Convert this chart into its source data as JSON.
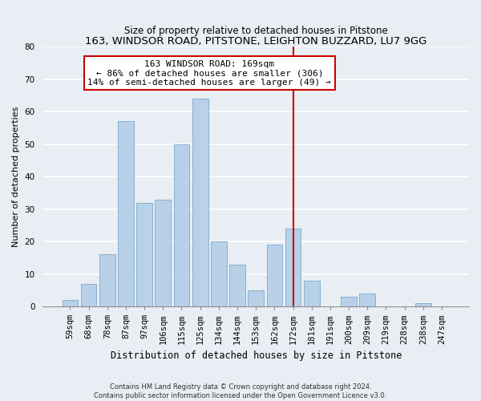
{
  "title": "163, WINDSOR ROAD, PITSTONE, LEIGHTON BUZZARD, LU7 9GG",
  "subtitle": "Size of property relative to detached houses in Pitstone",
  "xlabel": "Distribution of detached houses by size in Pitstone",
  "ylabel": "Number of detached properties",
  "bar_labels": [
    "59sqm",
    "68sqm",
    "78sqm",
    "87sqm",
    "97sqm",
    "106sqm",
    "115sqm",
    "125sqm",
    "134sqm",
    "144sqm",
    "153sqm",
    "162sqm",
    "172sqm",
    "181sqm",
    "191sqm",
    "200sqm",
    "209sqm",
    "219sqm",
    "228sqm",
    "238sqm",
    "247sqm"
  ],
  "bar_values": [
    2,
    7,
    16,
    57,
    32,
    33,
    50,
    64,
    20,
    13,
    5,
    19,
    24,
    8,
    0,
    3,
    4,
    0,
    0,
    1,
    0
  ],
  "bar_color": "#b8d0e8",
  "bar_edge_color": "#7aaac8",
  "vline_x_index": 12,
  "vline_color": "#cc0000",
  "annotation_title": "163 WINDSOR ROAD: 169sqm",
  "annotation_line1": "← 86% of detached houses are smaller (306)",
  "annotation_line2": "14% of semi-detached houses are larger (49) →",
  "annotation_box_facecolor": "#ffffff",
  "annotation_box_edgecolor": "#cc0000",
  "ylim": [
    0,
    80
  ],
  "yticks": [
    0,
    10,
    20,
    30,
    40,
    50,
    60,
    70,
    80
  ],
  "footer_line1": "Contains HM Land Registry data © Crown copyright and database right 2024.",
  "footer_line2": "Contains public sector information licensed under the Open Government Licence v3.0.",
  "fig_bg_color": "#e8eef4",
  "plot_bg_color": "#e8eef4",
  "grid_color": "#ffffff",
  "title_fontsize": 9.5,
  "subtitle_fontsize": 8.5,
  "ylabel_fontsize": 8,
  "xlabel_fontsize": 8.5,
  "tick_fontsize": 7.5,
  "footer_fontsize": 6,
  "annot_fontsize": 8
}
